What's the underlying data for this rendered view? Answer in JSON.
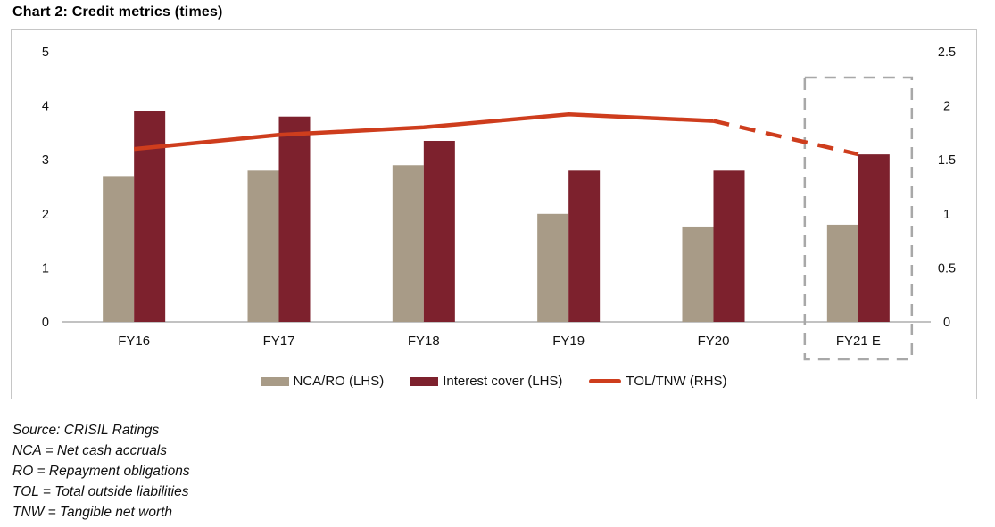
{
  "title": "Chart 2: Credit metrics (times)",
  "colors": {
    "chart_border": "#C6C6C6",
    "axis_line": "#C2C2C2",
    "highlight_box": "#A8A8A8",
    "text": "#121212"
  },
  "chart_data": {
    "type": "bar",
    "subtype": "combo-bar-line-dual-axis",
    "title": "Chart 2: Credit metrics (times)",
    "categories": [
      "FY16",
      "FY17",
      "FY18",
      "FY19",
      "FY20",
      "FY21 E"
    ],
    "series": [
      {
        "name": "NCA/RO (LHS)",
        "kind": "bar",
        "axis": "left",
        "color": "#A89B87",
        "values": [
          2.7,
          2.8,
          2.9,
          2.0,
          1.75,
          1.8
        ]
      },
      {
        "name": "Interest cover (LHS)",
        "kind": "bar",
        "axis": "left",
        "color": "#7D212D",
        "values": [
          3.9,
          3.8,
          3.35,
          2.8,
          2.8,
          3.1
        ]
      },
      {
        "name": "TOL/TNW (RHS)",
        "kind": "line",
        "axis": "right",
        "color": "#CE3D1D",
        "values": [
          1.6,
          1.73,
          1.8,
          1.92,
          1.86,
          1.55
        ],
        "dashed_from_index": 4
      }
    ],
    "left_axis": {
      "tick_labels": [
        "0",
        "1",
        "2",
        "3",
        "4",
        "5"
      ],
      "range": [
        0,
        5
      ]
    },
    "right_axis": {
      "tick_labels": [
        "0",
        "0.5",
        "1",
        "1.5",
        "2",
        "2.5"
      ],
      "range": [
        0,
        2.5
      ]
    },
    "highlight": {
      "category": "FY21 E",
      "style": "dashed-box"
    },
    "legend_position": "bottom",
    "grid": false,
    "xlabel": "",
    "ylabel": ""
  },
  "footnotes": [
    "Source: CRISIL Ratings",
    "NCA = Net cash accruals",
    "RO = Repayment obligations",
    "TOL = Total outside liabilities",
    "TNW = Tangible net worth"
  ]
}
